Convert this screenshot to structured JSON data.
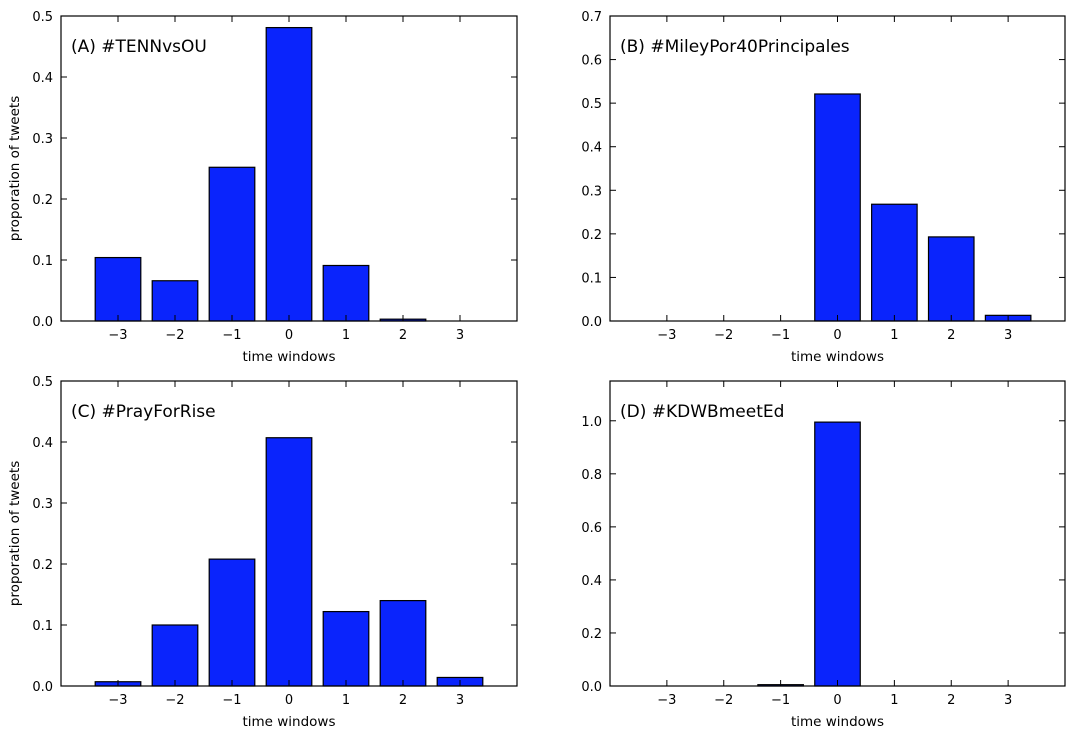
{
  "chart_data": [
    {
      "type": "bar",
      "title": "(A) #TENNvsOU",
      "xlabel": "time windows",
      "ylabel": "proporation of tweets",
      "categories": [
        "−3",
        "−2",
        "−1",
        "0",
        "1",
        "2",
        "3"
      ],
      "x": [
        -3,
        -2,
        -1,
        0,
        1,
        2,
        3
      ],
      "values": [
        0.104,
        0.066,
        0.252,
        0.481,
        0.091,
        0.003,
        0.0
      ],
      "ylim": [
        0,
        0.5
      ],
      "yticks": [
        0.0,
        0.1,
        0.2,
        0.3,
        0.4,
        0.5
      ],
      "ytick_labels": [
        "0.0",
        "0.1",
        "0.2",
        "0.3",
        "0.4",
        "0.5"
      ],
      "color": "#0a24fc"
    },
    {
      "type": "bar",
      "title": "(B) #MileyPor40Principales",
      "xlabel": "time windows",
      "ylabel": "",
      "categories": [
        "−3",
        "−2",
        "−1",
        "0",
        "1",
        "2",
        "3"
      ],
      "x": [
        -3,
        -2,
        -1,
        0,
        1,
        2,
        3
      ],
      "values": [
        0.0,
        0.0,
        0.0,
        0.521,
        0.268,
        0.193,
        0.013
      ],
      "ylim": [
        0,
        0.7
      ],
      "yticks": [
        0.0,
        0.1,
        0.2,
        0.3,
        0.4,
        0.5,
        0.6,
        0.7
      ],
      "ytick_labels": [
        "0.0",
        "0.1",
        "0.2",
        "0.3",
        "0.4",
        "0.5",
        "0.6",
        "0.7"
      ],
      "color": "#0a24fc"
    },
    {
      "type": "bar",
      "title": "(C) #PrayForRise",
      "xlabel": "time windows",
      "ylabel": "proporation of tweets",
      "categories": [
        "−3",
        "−2",
        "−1",
        "0",
        "1",
        "2",
        "3"
      ],
      "x": [
        -3,
        -2,
        -1,
        0,
        1,
        2,
        3
      ],
      "values": [
        0.007,
        0.1,
        0.208,
        0.407,
        0.122,
        0.14,
        0.014
      ],
      "ylim": [
        0,
        0.5
      ],
      "yticks": [
        0.0,
        0.1,
        0.2,
        0.3,
        0.4,
        0.5
      ],
      "ytick_labels": [
        "0.0",
        "0.1",
        "0.2",
        "0.3",
        "0.4",
        "0.5"
      ],
      "color": "#0a24fc"
    },
    {
      "type": "bar",
      "title": "(D) #KDWBmeetEd",
      "xlabel": "time windows",
      "ylabel": "",
      "categories": [
        "−3",
        "−2",
        "−1",
        "0",
        "1",
        "2",
        "3"
      ],
      "x": [
        -3,
        -2,
        -1,
        0,
        1,
        2,
        3
      ],
      "values": [
        0.0,
        0.0,
        0.005,
        0.995,
        0.0,
        0.0,
        0.0
      ],
      "ylim": [
        0,
        1.15
      ],
      "yticks": [
        0.0,
        0.2,
        0.4,
        0.6,
        0.8,
        1.0
      ],
      "ytick_labels": [
        "0.0",
        "0.2",
        "0.4",
        "0.6",
        "0.8",
        "1.0"
      ],
      "color": "#0a24fc"
    }
  ]
}
